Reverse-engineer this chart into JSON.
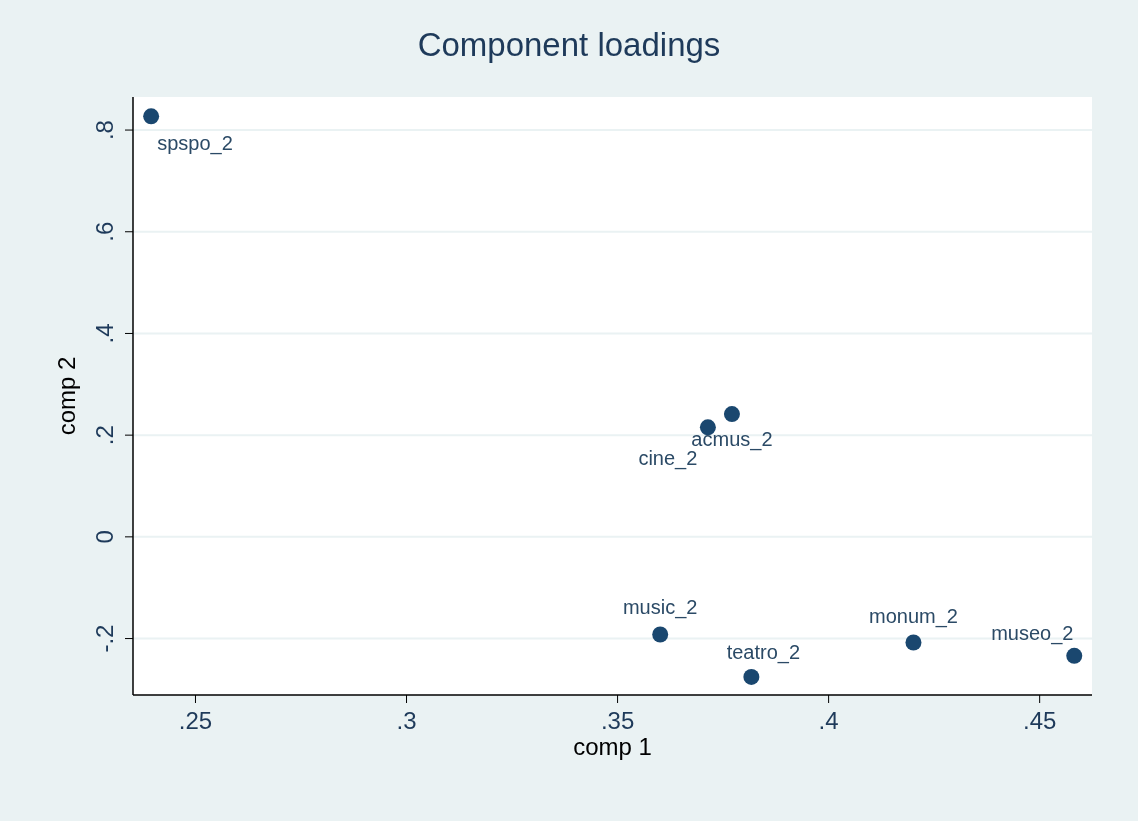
{
  "chart_data": {
    "type": "scatter",
    "title": "Component loadings",
    "xlabel": "comp 1",
    "ylabel": "comp 2",
    "x": [
      0.2395,
      0.3771,
      0.3714,
      0.3601,
      0.3817,
      0.4201,
      0.4582
    ],
    "series": [
      {
        "color": "#1a476f",
        "values": [
          0.827,
          0.2414,
          0.2154,
          -0.192,
          -0.2755,
          -0.2078,
          -0.2339
        ]
      }
    ],
    "annotations": [
      {
        "text": "spspo_2",
        "x": 0.2395,
        "y": 0.827
      },
      {
        "text": "acmus_2",
        "x": 0.3771,
        "y": 0.2414
      },
      {
        "text": "cine_2",
        "x": 0.3714,
        "y": 0.2154
      },
      {
        "text": "music_2",
        "x": 0.3601,
        "y": -0.192
      },
      {
        "text": "teatro_2",
        "x": 0.3817,
        "y": -0.2755
      },
      {
        "text": "monum_2",
        "x": 0.4201,
        "y": -0.2078
      },
      {
        "text": "museo_2",
        "x": 0.4582,
        "y": -0.2339
      }
    ],
    "xlim": [
      0.2352,
      0.4624
    ],
    "ylim": [
      -0.311,
      0.865
    ],
    "xticks": [
      {
        "value": 0.25,
        "label": ".25"
      },
      {
        "value": 0.3,
        "label": ".3"
      },
      {
        "value": 0.35,
        "label": ".35"
      },
      {
        "value": 0.4,
        "label": ".4"
      },
      {
        "value": 0.45,
        "label": ".45"
      }
    ],
    "yticks": [
      {
        "value": -0.2,
        "label": "-.2"
      },
      {
        "value": 0,
        "label": "0"
      },
      {
        "value": 0.2,
        "label": ".2"
      },
      {
        "value": 0.4,
        "label": ".4"
      },
      {
        "value": 0.6,
        "label": ".6"
      },
      {
        "value": 0.8,
        "label": ".8"
      }
    ],
    "grid": "y",
    "marker": "circle"
  }
}
